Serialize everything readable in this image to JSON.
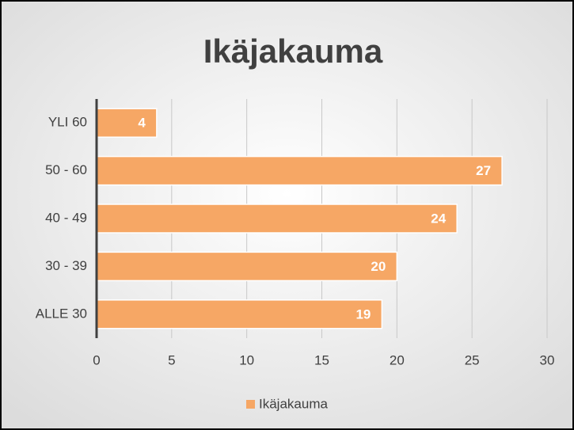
{
  "chart_data": {
    "type": "hbar",
    "title": "Ikäjakauma",
    "categories": [
      "YLI 60",
      "50 - 60",
      "40 - 49",
      "30 - 39",
      "ALLE 30"
    ],
    "series": [
      {
        "name": "Ikäjakauma",
        "color": "#f6a765",
        "values": [
          4,
          27,
          24,
          20,
          19
        ]
      }
    ],
    "xlim": [
      0,
      30
    ],
    "xticks": [
      0,
      5,
      10,
      15,
      20,
      25,
      30
    ],
    "grid": true,
    "legend": "bottom"
  }
}
